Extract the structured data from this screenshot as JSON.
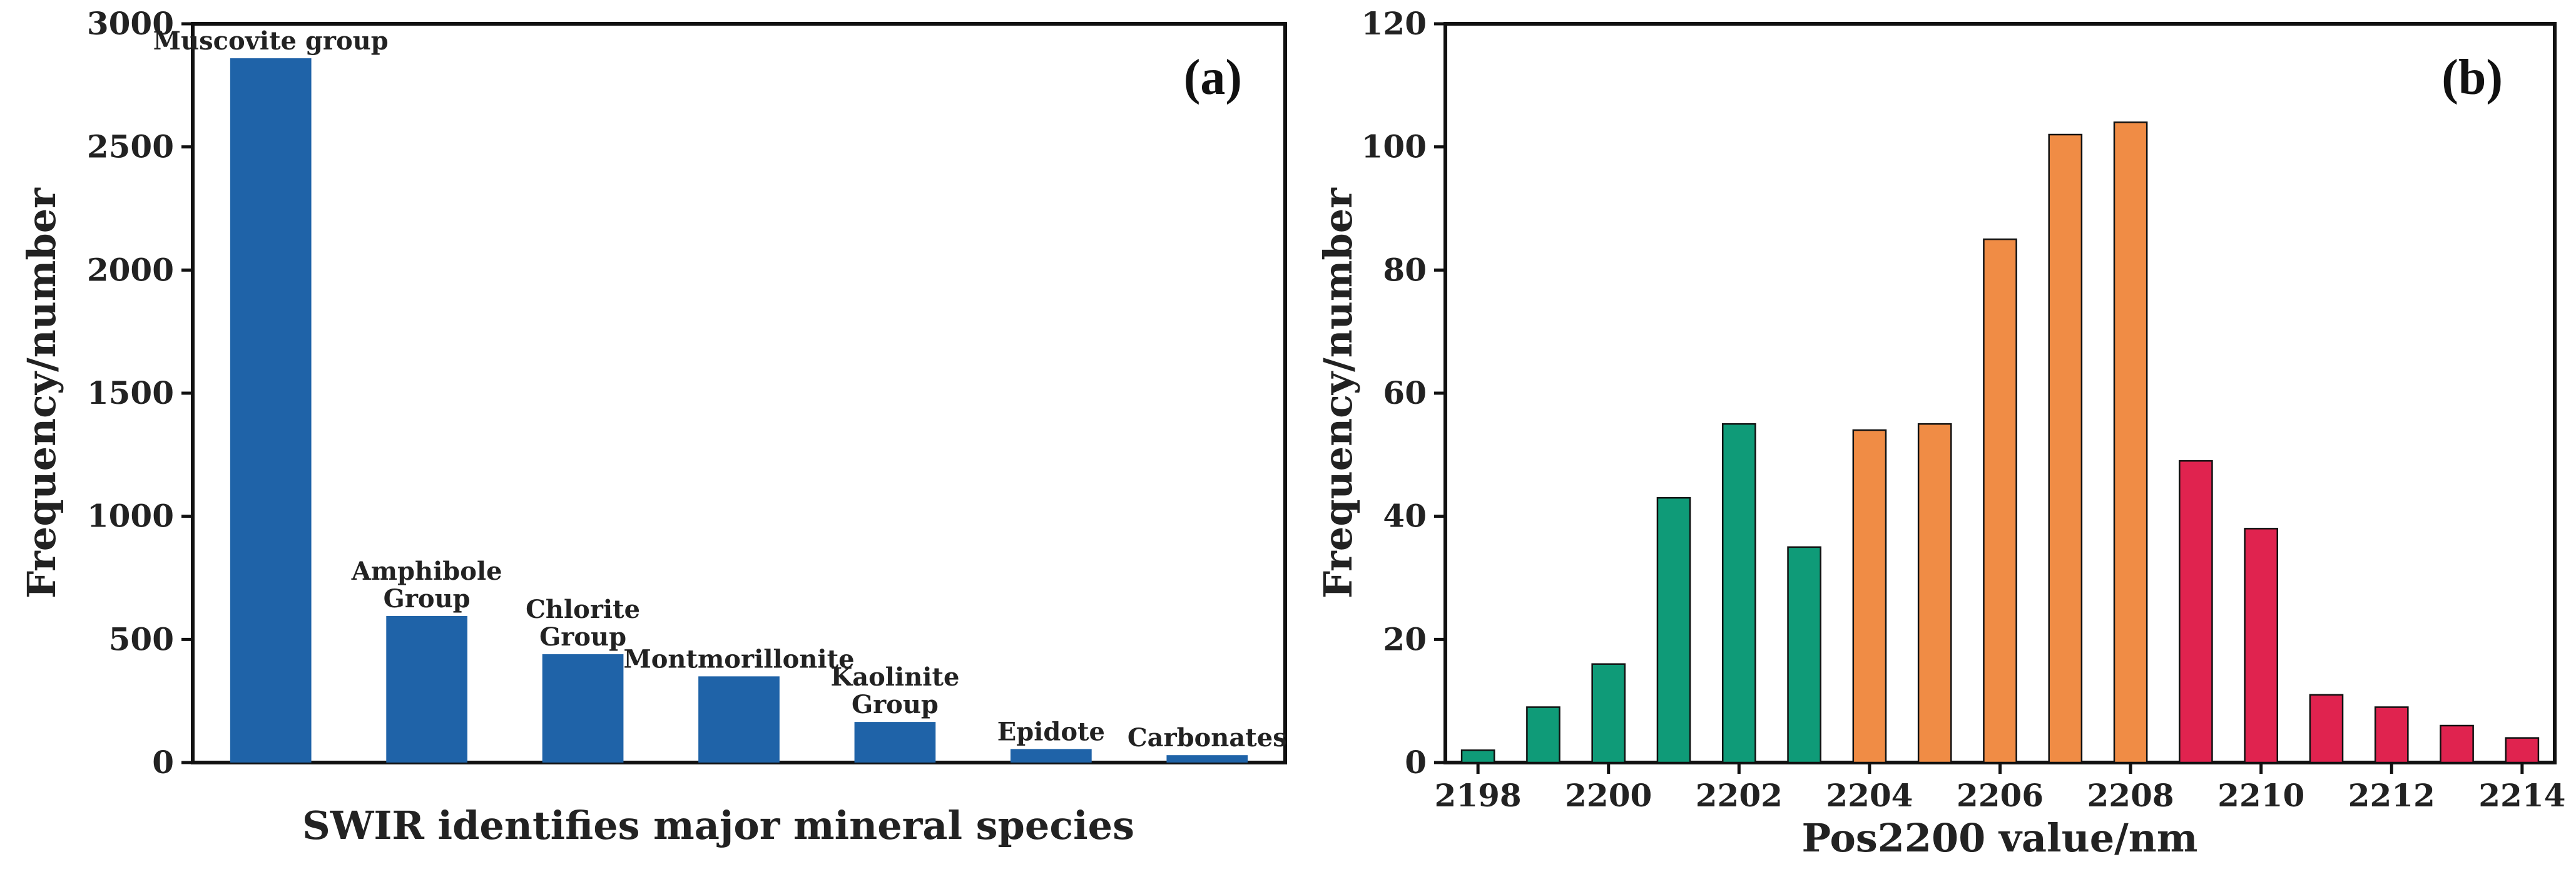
{
  "chart_data": [
    {
      "type": "bar",
      "panel_label": "(a)",
      "xlabel": "SWIR identifies major mineral species",
      "ylabel": "Frequency/number",
      "ylim": [
        0,
        3000
      ],
      "yticks": [
        0,
        500,
        1000,
        1500,
        2000,
        2500,
        3000
      ],
      "categories": [
        [
          "Muscovite group"
        ],
        [
          "Amphibole",
          "Group"
        ],
        [
          "Chlorite",
          "Group"
        ],
        [
          "Montmorillonite"
        ],
        [
          "Kaolinite",
          "Group"
        ],
        [
          "Epidote"
        ],
        [
          "Carbonates"
        ]
      ],
      "values": [
        2860,
        595,
        440,
        350,
        165,
        55,
        30
      ],
      "color": "#1f63a8",
      "grid": false
    },
    {
      "type": "bar",
      "panel_label": "(b)",
      "xlabel": "Pos2200 value/nm",
      "ylabel": "Frequency/number",
      "ylim": [
        0,
        120
      ],
      "yticks": [
        0,
        20,
        40,
        60,
        80,
        100,
        120
      ],
      "xlim": [
        2197.5,
        2214.5
      ],
      "xticks": [
        2198,
        2200,
        2202,
        2204,
        2206,
        2208,
        2210,
        2212,
        2214
      ],
      "x": [
        2198,
        2199,
        2200,
        2201,
        2202,
        2203,
        2204,
        2205,
        2206,
        2207,
        2208,
        2209,
        2210,
        2211,
        2212,
        2213,
        2214
      ],
      "values": [
        2,
        9,
        16,
        43,
        55,
        35,
        54,
        55,
        85,
        102,
        104,
        49,
        38,
        11,
        9,
        6,
        4
      ],
      "colors": [
        "#0f9b78",
        "#0f9b78",
        "#0f9b78",
        "#0f9b78",
        "#0f9b78",
        "#0f9b78",
        "#f08c45",
        "#f08c45",
        "#f08c45",
        "#f08c45",
        "#f08c45",
        "#e0234f",
        "#e0234f",
        "#e0234f",
        "#e0234f",
        "#e0234f",
        "#e0234f"
      ],
      "grid": false
    }
  ]
}
